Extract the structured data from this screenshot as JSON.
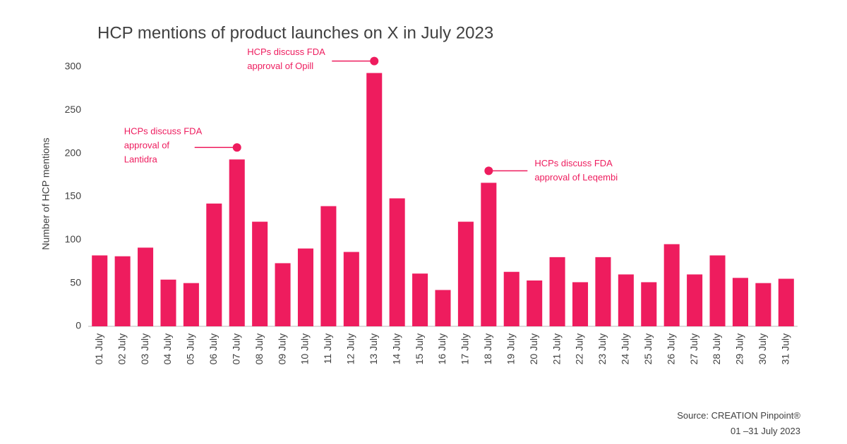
{
  "chart_data": {
    "type": "bar",
    "title": "HCP mentions of product launches on X in July 2023",
    "y_label": "Number of HCP mentions",
    "categories": [
      "01 July",
      "02 July",
      "03 July",
      "04 July",
      "05 July",
      "06 July",
      "07 July",
      "08 July",
      "09 July",
      "10 July",
      "11 July",
      "12 July",
      "13 July",
      "14 July",
      "15 July",
      "16 July",
      "17 July",
      "18 July",
      "19 July",
      "20 July",
      "21 July",
      "22 July",
      "23 July",
      "24 July",
      "25 July",
      "26 July",
      "27 July",
      "28 July",
      "29 July",
      "30 July",
      "31 July"
    ],
    "values": [
      82,
      81,
      91,
      54,
      50,
      142,
      193,
      121,
      73,
      90,
      139,
      86,
      293,
      148,
      61,
      42,
      121,
      166,
      63,
      53,
      80,
      51,
      80,
      60,
      51,
      95,
      60,
      82,
      56,
      50,
      55
    ],
    "color": "#ee1c5e",
    "ylim": [
      0,
      300
    ],
    "yticks": [
      0,
      50,
      100,
      150,
      200,
      250,
      300
    ],
    "grid": false,
    "annotations": [
      {
        "category": "07 July",
        "lines": [
          "HCPs discuss FDA",
          "approval of",
          "Lantidra"
        ]
      },
      {
        "category": "13 July",
        "lines": [
          "HCPs discuss FDA",
          "approval of Opill"
        ]
      },
      {
        "category": "18 July",
        "lines": [
          "HCPs discuss FDA",
          "approval of Leqembi"
        ]
      }
    ],
    "source": [
      "Source: CREATION Pinpoint®",
      "01 –31 July 2023"
    ]
  }
}
